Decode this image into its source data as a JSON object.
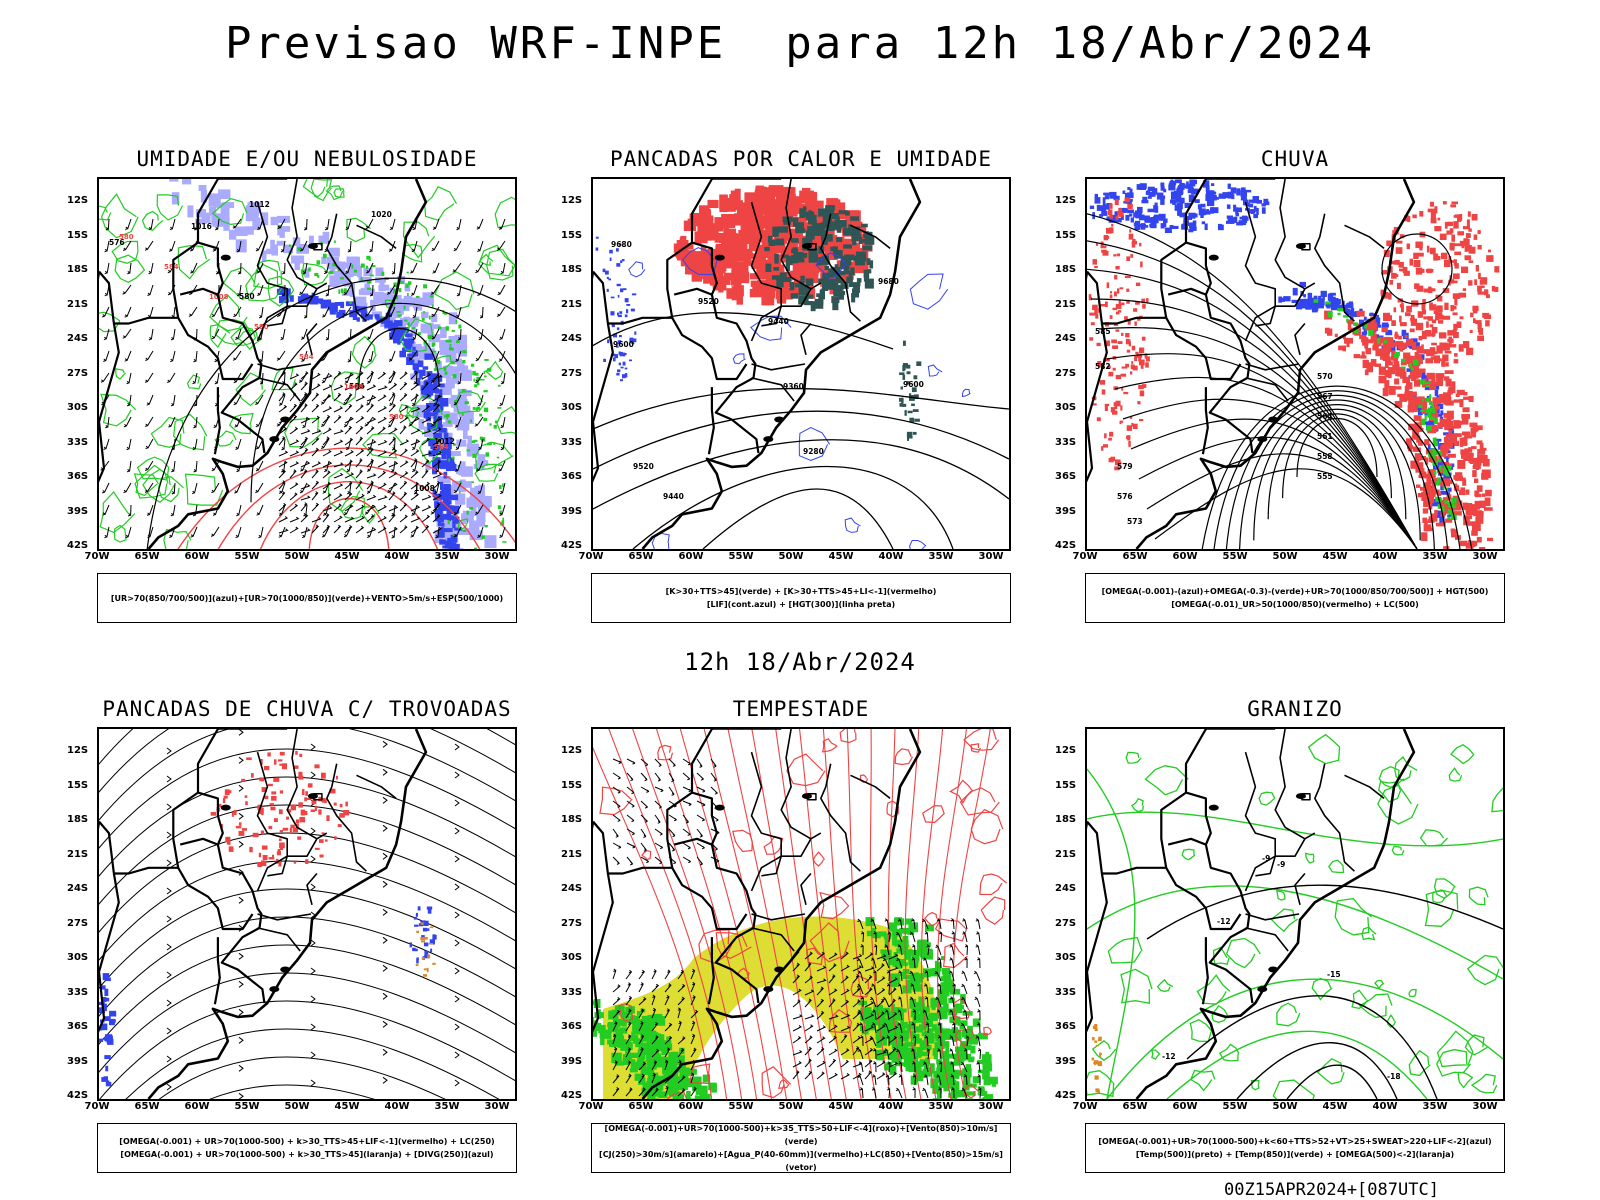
{
  "title": "Previsao WRF-INPE  para 12h 18/Abr/2024",
  "subtitle": "12h 18/Abr/2024",
  "footer": "00Z15APR2024+[087UTC]",
  "lat_labels": [
    "12S",
    "15S",
    "18S",
    "21S",
    "24S",
    "27S",
    "30S",
    "33S",
    "36S",
    "39S",
    "42S"
  ],
  "lon_labels": [
    "70W",
    "65W",
    "60W",
    "55W",
    "50W",
    "45W",
    "40W",
    "35W",
    "30W"
  ],
  "colors": {
    "blue": "#3344ee",
    "green": "#22cc22",
    "red": "#ee4444",
    "purple": "#aaaaff",
    "teal": "#2f5555",
    "yellow": "#dddd33",
    "orange": "#dd8822"
  },
  "panels": [
    {
      "title": "UMIDADE E/OU NEBULOSIDADE",
      "legend": [
        "[UR>70(850/700/500)](azul)+[UR>70(1000/850)](verde)+VENTO>5m/s+ESP(500/1000)"
      ],
      "isolines": [
        "1012",
        "1016",
        "1020",
        "576",
        "580",
        "584",
        "1008",
        "1012"
      ]
    },
    {
      "title": "PANCADAS POR CALOR E UMIDADE",
      "legend": [
        "[K>30+TTS>45](verde) + [K>30+TTS>45+LI<-1](vermelho)",
        "[LIF](cont.azul) + [HGT(300)](linha preta)"
      ],
      "isolines": [
        "9680",
        "9600",
        "9520",
        "9440",
        "9360",
        "9280",
        "9600",
        "9520",
        "9440",
        "9680"
      ]
    },
    {
      "title": "CHUVA",
      "legend": [
        "[OMEGA(-0.001)-(azul)+OMEGA(-0.3)-(verde)+UR>70(1000/850/700/500)] + HGT(500)",
        "[OMEGA(-0.01)_UR>50(1000/850)(vermelho) + LC(500)"
      ],
      "isolines": [
        "585",
        "582",
        "579",
        "576",
        "573",
        "570",
        "567",
        "564",
        "561",
        "558",
        "555"
      ]
    },
    {
      "title": "PANCADAS DE CHUVA C/ TROVOADAS",
      "legend": [
        "[OMEGA(-0.001) + UR>70(1000-500) + k>30_TTS>45+LIF<-1](vermelho) + LC(250)",
        "[OMEGA(-0.001) + UR>70(1000-500) + k>30_TTS>45](laranja) + [DIVG(250)](azul)"
      ],
      "isolines": []
    },
    {
      "title": "TEMPESTADE",
      "legend": [
        "[OMEGA(-0.001)+UR>70(1000-500)+k>35_TTS>50+LIF<-4](roxo)+[Vento(850)>10m/s](verde)",
        "[CJ(250)>30m/s](amarelo)+[Agua_P(40-60mm)](vermelho)+LC(850)+[Vento(850)>15m/s](vetor)"
      ],
      "isolines": []
    },
    {
      "title": "GRANIZO",
      "legend": [
        "[OMEGA(-0.001)+UR>70(1000-500)+k<60+TTS>52+VT>25+SWEAT>220+LIF<-2](azul)",
        "[Temp(500)](preto) + [Temp(850)](verde) + [OMEGA(500)<-2](laranja)"
      ],
      "isolines": [
        "-9",
        "-12",
        "-15",
        "-18",
        "-9",
        "-12"
      ]
    }
  ]
}
